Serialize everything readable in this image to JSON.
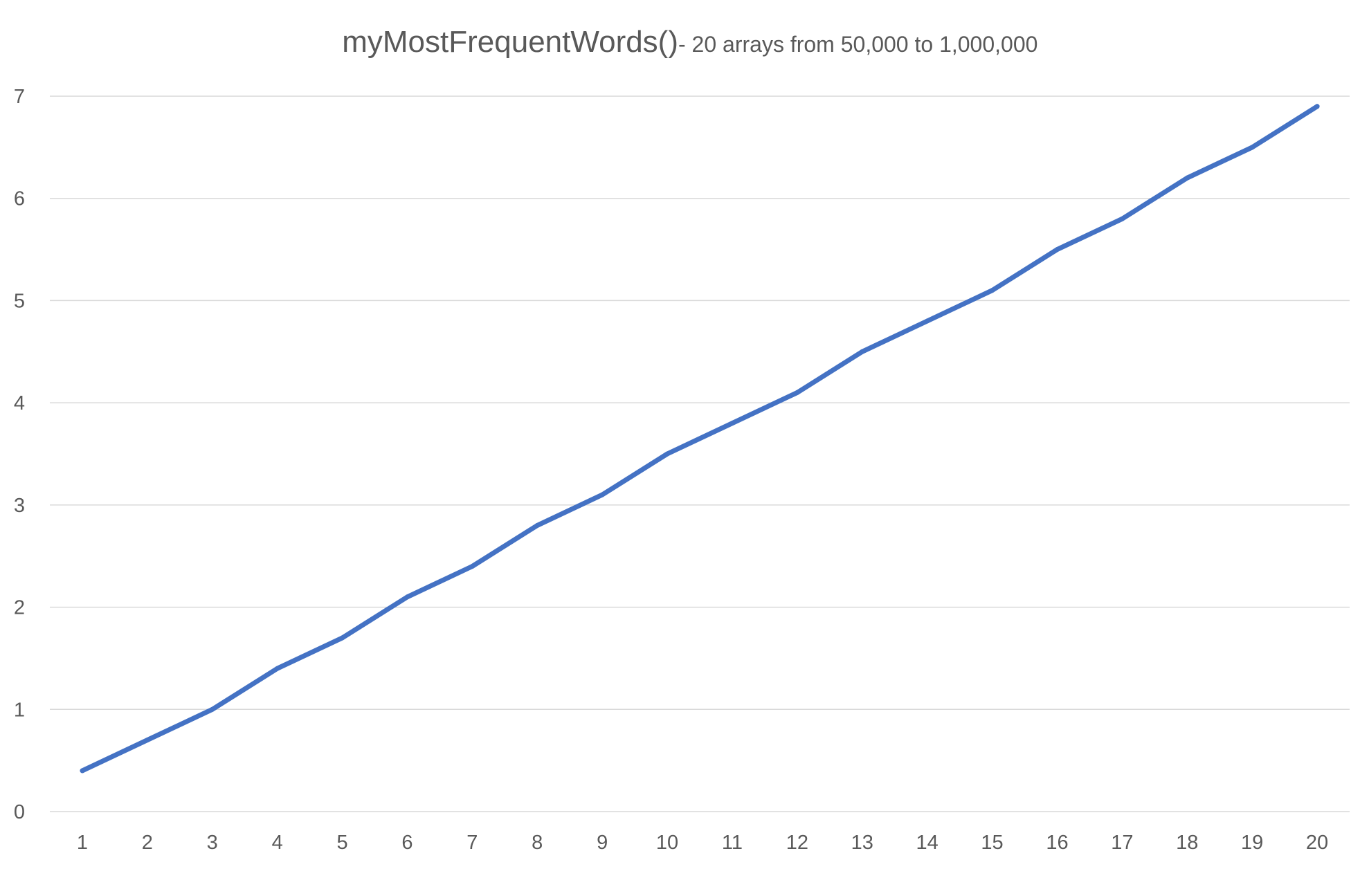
{
  "chart_data": {
    "type": "line",
    "title": "myMostFrequentWords()",
    "subtitle": " - 20 arrays from 50,000  to 1,000,000",
    "xlabel": "",
    "ylabel": "",
    "categories": [
      "1",
      "2",
      "3",
      "4",
      "5",
      "6",
      "7",
      "8",
      "9",
      "10",
      "11",
      "12",
      "13",
      "14",
      "15",
      "16",
      "17",
      "18",
      "19",
      "20"
    ],
    "series": [
      {
        "values": [
          0.4,
          0.7,
          1.0,
          1.4,
          1.7,
          2.1,
          2.4,
          2.8,
          3.1,
          3.5,
          3.8,
          4.1,
          4.5,
          4.8,
          5.1,
          5.5,
          5.8,
          6.2,
          6.5,
          6.9
        ],
        "color": "#4472c4"
      }
    ],
    "ylim": [
      0,
      7
    ],
    "yticks": [
      "0",
      "1",
      "2",
      "3",
      "4",
      "5",
      "6",
      "7"
    ],
    "grid": true,
    "legend": "none"
  }
}
